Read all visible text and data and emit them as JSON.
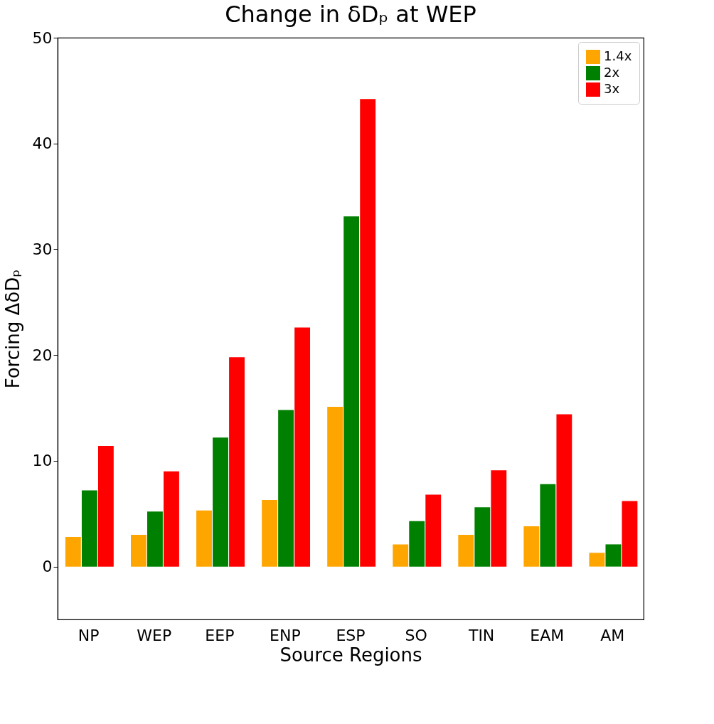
{
  "chart_data": {
    "type": "bar",
    "title": "Change in δDₚ at WEP",
    "xlabel": "Source Regions",
    "ylabel": "Forcing ΔδDₚ",
    "categories": [
      "NP",
      "WEP",
      "EEP",
      "ENP",
      "ESP",
      "SO",
      "TIN",
      "EAM",
      "AM"
    ],
    "series": [
      {
        "name": "1.4x",
        "color": "#ffa500",
        "values": [
          2.8,
          3.0,
          5.3,
          6.3,
          15.1,
          2.1,
          3.0,
          3.8,
          1.3
        ]
      },
      {
        "name": "2x",
        "color": "#008000",
        "values": [
          7.2,
          5.2,
          12.2,
          14.8,
          33.1,
          4.3,
          5.6,
          7.8,
          2.1
        ]
      },
      {
        "name": "3x",
        "color": "#ff0000",
        "values": [
          11.4,
          9.0,
          19.8,
          22.6,
          44.2,
          6.8,
          9.1,
          14.4,
          6.2
        ]
      }
    ],
    "ylim": [
      -5,
      50
    ],
    "yticks": [
      0,
      10,
      20,
      30,
      40,
      50
    ],
    "grid": false,
    "legend": "top right"
  }
}
